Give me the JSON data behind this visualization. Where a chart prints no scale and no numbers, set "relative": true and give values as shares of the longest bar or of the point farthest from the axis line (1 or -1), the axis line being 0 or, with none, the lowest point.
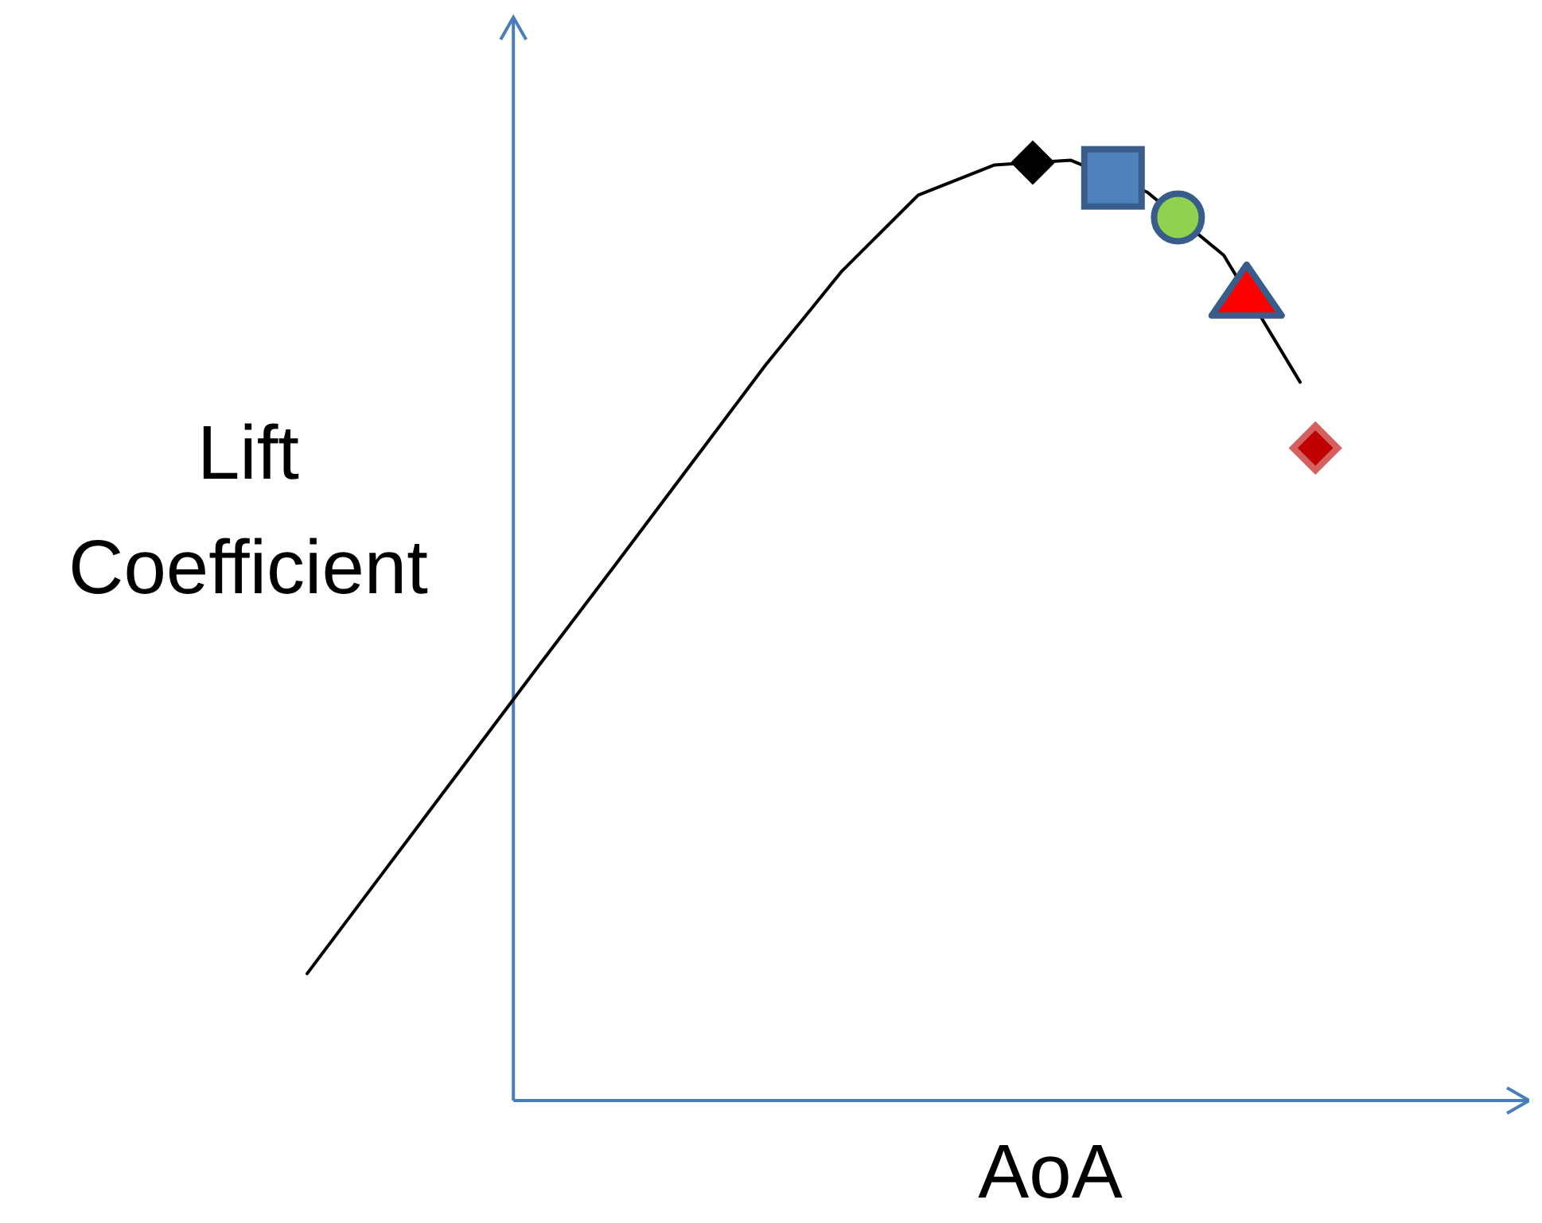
{
  "chart_data": {
    "type": "line",
    "relative": true,
    "xlabel": "AoA",
    "ylabel": "Lift Coefficient",
    "marker": "none",
    "categories": [
      null,
      null,
      null,
      null,
      null,
      null,
      null,
      null,
      null,
      null,
      null,
      null,
      null,
      null
    ],
    "series": [
      {
        "color": "#000000",
        "values": [
          0.135,
          0.243,
          0.351,
          0.459,
          0.566,
          0.674,
          0.782,
          0.882,
          0.963,
          0.995,
          1,
          0.966,
          0.899,
          0.764
        ]
      }
    ]
  }
}
